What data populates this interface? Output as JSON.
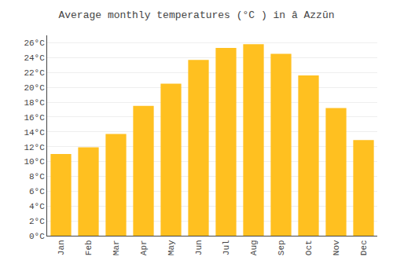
{
  "chart_data": {
    "type": "bar",
    "title": "Average monthly temperatures (°C ) in â Azzūn",
    "categories": [
      "Jan",
      "Feb",
      "Mar",
      "Apr",
      "May",
      "Jun",
      "Jul",
      "Aug",
      "Sep",
      "Oct",
      "Nov",
      "Dec"
    ],
    "values": [
      11.0,
      11.9,
      13.7,
      17.5,
      20.5,
      23.7,
      25.3,
      25.8,
      24.5,
      21.6,
      17.2,
      12.9
    ],
    "color": "#FFC020",
    "ylim": [
      0,
      27
    ],
    "yticks": [
      {
        "value": 0,
        "label": "0°C"
      },
      {
        "value": 2,
        "label": "2°C"
      },
      {
        "value": 4,
        "label": "4°C"
      },
      {
        "value": 6,
        "label": "6°C"
      },
      {
        "value": 8,
        "label": "8°C"
      },
      {
        "value": 10,
        "label": "10°C"
      },
      {
        "value": 12,
        "label": "12°C"
      },
      {
        "value": 14,
        "label": "14°C"
      },
      {
        "value": 16,
        "label": "16°C"
      },
      {
        "value": 18,
        "label": "18°C"
      },
      {
        "value": 20,
        "label": "20°C"
      },
      {
        "value": 22,
        "label": "22°C"
      },
      {
        "value": 24,
        "label": "24°C"
      },
      {
        "value": 26,
        "label": "26°C"
      }
    ],
    "grid": true
  }
}
